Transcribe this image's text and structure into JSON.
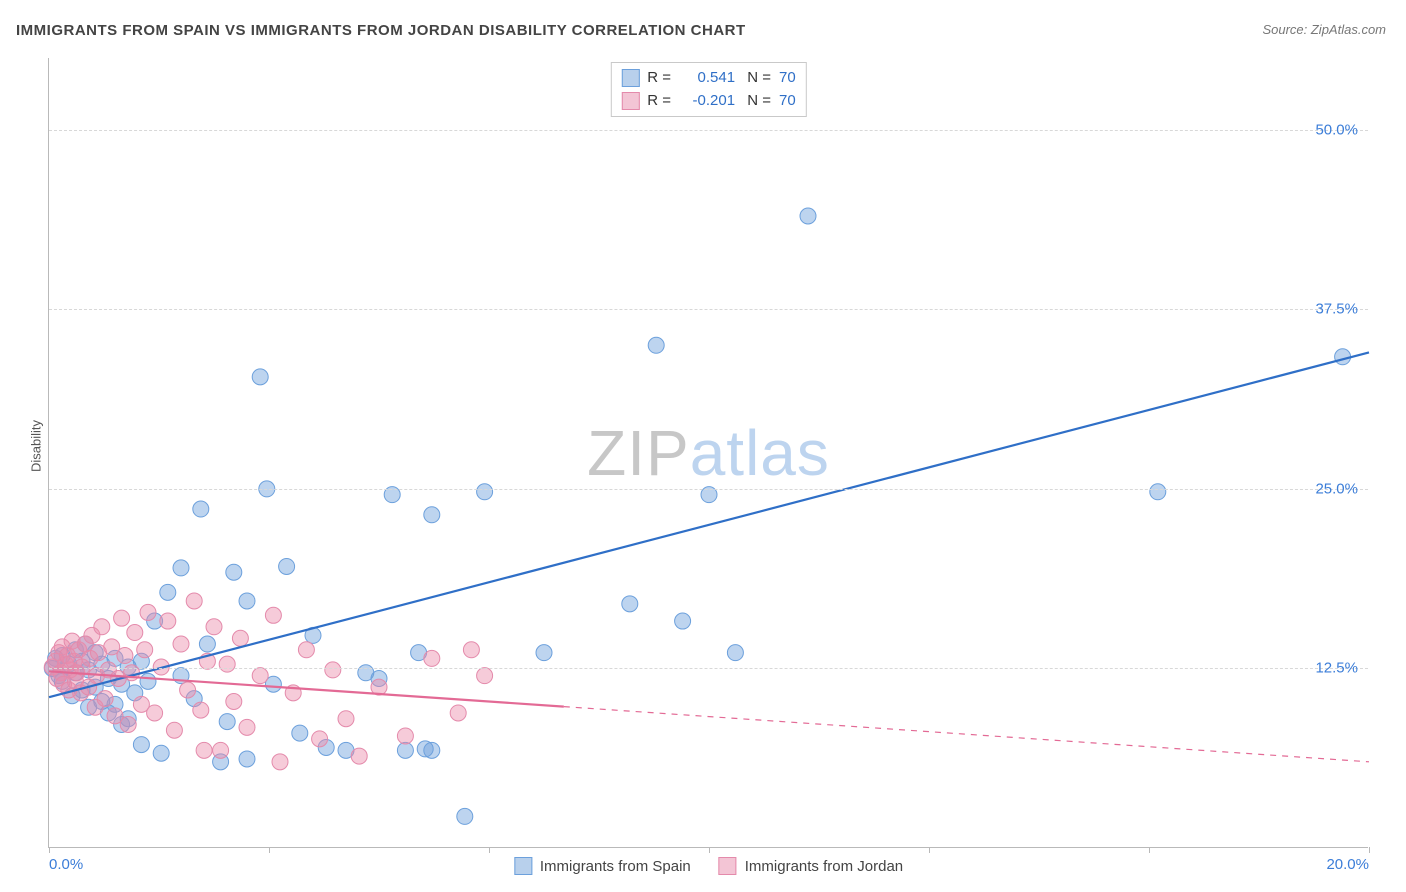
{
  "title": "IMMIGRANTS FROM SPAIN VS IMMIGRANTS FROM JORDAN DISABILITY CORRELATION CHART",
  "source": "Source: ZipAtlas.com",
  "ylabel": "Disability",
  "watermark": {
    "part1": "ZIP",
    "part2": "atlas"
  },
  "chart": {
    "type": "scatter_with_regression",
    "background_color": "#ffffff",
    "grid_color": "#d8d8d8",
    "axis_color": "#b9b9b9",
    "xlim": [
      0,
      20
    ],
    "ylim": [
      0,
      55
    ],
    "xticks": [
      {
        "v": 0,
        "label": "0.0%"
      },
      {
        "v": 20,
        "label": "20.0%"
      }
    ],
    "xtick_marks": [
      0,
      3.33,
      6.67,
      10,
      13.33,
      16.67,
      20
    ],
    "yticks": [
      {
        "v": 12.5,
        "label": "12.5%"
      },
      {
        "v": 25.0,
        "label": "25.0%"
      },
      {
        "v": 37.5,
        "label": "37.5%"
      },
      {
        "v": 50.0,
        "label": "50.0%"
      }
    ],
    "xtick_color": "#3b7dd8",
    "ytick_color": "#3b7dd8",
    "tick_fontsize": 15,
    "series": [
      {
        "name": "Immigrants from Spain",
        "fill": "rgba(108,160,220,0.45)",
        "stroke": "#6ca0dc",
        "swatch_fill": "#b8d0ec",
        "swatch_border": "#6ca0dc",
        "line_color": "#2f6fc7",
        "line_width": 2.2,
        "marker_radius": 8,
        "R": "0.541",
        "N": "70",
        "regression": {
          "x1": 0,
          "y1": 10.5,
          "x2": 20,
          "y2": 34.5,
          "solid_to_x": 20
        },
        "points": [
          [
            0.05,
            12.5
          ],
          [
            0.1,
            13.2
          ],
          [
            0.15,
            12.0
          ],
          [
            0.2,
            11.6
          ],
          [
            0.2,
            13.4
          ],
          [
            0.3,
            12.8
          ],
          [
            0.35,
            10.6
          ],
          [
            0.4,
            12.2
          ],
          [
            0.4,
            13.8
          ],
          [
            0.5,
            11.0
          ],
          [
            0.5,
            13.0
          ],
          [
            0.55,
            14.2
          ],
          [
            0.6,
            9.8
          ],
          [
            0.6,
            12.4
          ],
          [
            0.7,
            11.2
          ],
          [
            0.7,
            13.6
          ],
          [
            0.8,
            10.2
          ],
          [
            0.8,
            12.8
          ],
          [
            0.9,
            11.8
          ],
          [
            0.9,
            9.4
          ],
          [
            1.0,
            10.0
          ],
          [
            1.0,
            13.2
          ],
          [
            1.1,
            8.6
          ],
          [
            1.1,
            11.4
          ],
          [
            1.2,
            12.6
          ],
          [
            1.2,
            9.0
          ],
          [
            1.3,
            10.8
          ],
          [
            1.4,
            13.0
          ],
          [
            1.4,
            7.2
          ],
          [
            1.5,
            11.6
          ],
          [
            1.6,
            15.8
          ],
          [
            1.7,
            6.6
          ],
          [
            1.8,
            17.8
          ],
          [
            2.0,
            19.5
          ],
          [
            2.0,
            12.0
          ],
          [
            2.2,
            10.4
          ],
          [
            2.3,
            23.6
          ],
          [
            2.4,
            14.2
          ],
          [
            2.7,
            8.8
          ],
          [
            2.8,
            19.2
          ],
          [
            3.0,
            17.2
          ],
          [
            3.0,
            6.2
          ],
          [
            3.2,
            32.8
          ],
          [
            3.4,
            11.4
          ],
          [
            3.6,
            19.6
          ],
          [
            3.8,
            8.0
          ],
          [
            4.0,
            14.8
          ],
          [
            4.2,
            7.0
          ],
          [
            4.5,
            6.8
          ],
          [
            4.8,
            12.2
          ],
          [
            5.0,
            11.8
          ],
          [
            5.2,
            24.6
          ],
          [
            5.4,
            6.8
          ],
          [
            5.6,
            13.6
          ],
          [
            5.7,
            6.9
          ],
          [
            5.8,
            23.2
          ],
          [
            5.8,
            6.8
          ],
          [
            6.3,
            2.2
          ],
          [
            6.6,
            24.8
          ],
          [
            7.5,
            13.6
          ],
          [
            8.8,
            17.0
          ],
          [
            9.2,
            35.0
          ],
          [
            9.6,
            15.8
          ],
          [
            10.0,
            24.6
          ],
          [
            10.4,
            13.6
          ],
          [
            11.5,
            44.0
          ],
          [
            16.8,
            24.8
          ],
          [
            19.6,
            34.2
          ],
          [
            2.6,
            6.0
          ],
          [
            3.3,
            25.0
          ]
        ]
      },
      {
        "name": "Immigrants from Jordan",
        "fill": "rgba(235,140,170,0.45)",
        "stroke": "#e48aab",
        "swatch_fill": "#f3c5d5",
        "swatch_border": "#e48aab",
        "line_color": "#e36a95",
        "line_width": 2.2,
        "marker_radius": 8,
        "R": "-0.201",
        "N": "70",
        "regression": {
          "x1": 0,
          "y1": 12.3,
          "x2": 20,
          "y2": 6.0,
          "solid_to_x": 7.8
        },
        "points": [
          [
            0.05,
            12.6
          ],
          [
            0.1,
            13.0
          ],
          [
            0.12,
            11.8
          ],
          [
            0.15,
            13.6
          ],
          [
            0.18,
            12.2
          ],
          [
            0.2,
            14.0
          ],
          [
            0.22,
            11.4
          ],
          [
            0.25,
            12.8
          ],
          [
            0.28,
            13.4
          ],
          [
            0.3,
            11.0
          ],
          [
            0.32,
            12.4
          ],
          [
            0.35,
            14.4
          ],
          [
            0.38,
            13.0
          ],
          [
            0.4,
            11.6
          ],
          [
            0.42,
            12.2
          ],
          [
            0.45,
            13.8
          ],
          [
            0.48,
            10.8
          ],
          [
            0.5,
            12.6
          ],
          [
            0.55,
            14.2
          ],
          [
            0.6,
            11.2
          ],
          [
            0.62,
            13.2
          ],
          [
            0.65,
            14.8
          ],
          [
            0.7,
            9.8
          ],
          [
            0.72,
            12.0
          ],
          [
            0.75,
            13.6
          ],
          [
            0.8,
            15.4
          ],
          [
            0.85,
            10.4
          ],
          [
            0.9,
            12.4
          ],
          [
            0.95,
            14.0
          ],
          [
            1.0,
            9.2
          ],
          [
            1.05,
            11.8
          ],
          [
            1.1,
            16.0
          ],
          [
            1.15,
            13.4
          ],
          [
            1.2,
            8.6
          ],
          [
            1.25,
            12.2
          ],
          [
            1.3,
            15.0
          ],
          [
            1.4,
            10.0
          ],
          [
            1.45,
            13.8
          ],
          [
            1.5,
            16.4
          ],
          [
            1.6,
            9.4
          ],
          [
            1.7,
            12.6
          ],
          [
            1.8,
            15.8
          ],
          [
            1.9,
            8.2
          ],
          [
            2.0,
            14.2
          ],
          [
            2.1,
            11.0
          ],
          [
            2.2,
            17.2
          ],
          [
            2.3,
            9.6
          ],
          [
            2.4,
            13.0
          ],
          [
            2.5,
            15.4
          ],
          [
            2.6,
            6.8
          ],
          [
            2.7,
            12.8
          ],
          [
            2.8,
            10.2
          ],
          [
            2.9,
            14.6
          ],
          [
            3.0,
            8.4
          ],
          [
            3.2,
            12.0
          ],
          [
            3.4,
            16.2
          ],
          [
            3.5,
            6.0
          ],
          [
            3.7,
            10.8
          ],
          [
            3.9,
            13.8
          ],
          [
            4.1,
            7.6
          ],
          [
            4.3,
            12.4
          ],
          [
            4.5,
            9.0
          ],
          [
            4.7,
            6.4
          ],
          [
            5.0,
            11.2
          ],
          [
            5.4,
            7.8
          ],
          [
            5.8,
            13.2
          ],
          [
            6.2,
            9.4
          ],
          [
            6.4,
            13.8
          ],
          [
            6.6,
            12.0
          ],
          [
            2.35,
            6.8
          ]
        ]
      }
    ]
  }
}
